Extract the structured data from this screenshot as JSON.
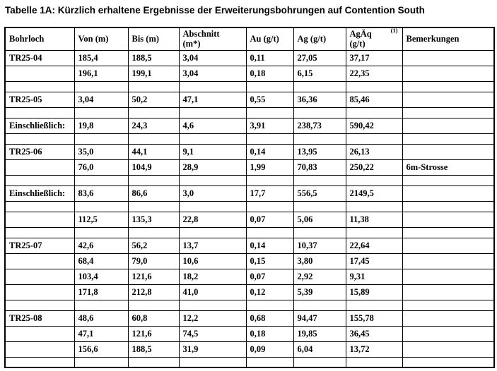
{
  "title": "Tabelle 1A: Kürzlich erhaltene Ergebnisse der Erweiterungsbohrungen auf Contention South",
  "table": {
    "columns": [
      {
        "lines": [
          "Bohrloch"
        ]
      },
      {
        "lines": [
          "Von (m)"
        ]
      },
      {
        "lines": [
          "Bis (m)"
        ]
      },
      {
        "lines": [
          "Abschnitt",
          "(m*)"
        ]
      },
      {
        "lines": [
          "Au (g/t)"
        ]
      },
      {
        "lines": [
          "Ag (g/t)"
        ]
      },
      {
        "lines": [
          "AgÄq",
          "(g/t)"
        ],
        "superscript": "(1)"
      },
      {
        "lines": [
          "Bemerkungen"
        ]
      }
    ],
    "rows": [
      {
        "type": "data",
        "cells": [
          "TR25-04",
          "185,4",
          "188,5",
          "3,04",
          "0,11",
          "27,05",
          "37,17",
          ""
        ]
      },
      {
        "type": "data",
        "cells": [
          "",
          "196,1",
          "199,1",
          "3,04",
          "0,18",
          "6,15",
          "22,35",
          ""
        ]
      },
      {
        "type": "spacer",
        "cells": [
          "",
          "",
          "",
          "",
          "",
          "",
          "",
          ""
        ]
      },
      {
        "type": "data",
        "cells": [
          "TR25-05",
          "3,04",
          "50,2",
          "47,1",
          "0,55",
          "36,36",
          "85,46",
          ""
        ]
      },
      {
        "type": "spacer",
        "cells": [
          "",
          "",
          "",
          "",
          "",
          "",
          "",
          ""
        ]
      },
      {
        "type": "data",
        "cells": [
          "Einschließlich:",
          "19,8",
          "24,3",
          "4,6",
          "3,91",
          "238,73",
          "590,42",
          ""
        ]
      },
      {
        "type": "spacer",
        "cells": [
          "",
          "",
          "",
          "",
          "",
          "",
          "",
          ""
        ]
      },
      {
        "type": "data",
        "cells": [
          "TR25-06",
          "35,0",
          "44,1",
          "9,1",
          "0,14",
          "13,95",
          "26,13",
          ""
        ]
      },
      {
        "type": "data",
        "cells": [
          "",
          "76,0",
          "104,9",
          "28,9",
          "1,99",
          "70,83",
          "250,22",
          "6m-Strosse"
        ]
      },
      {
        "type": "spacer",
        "cells": [
          "",
          "",
          "",
          "",
          "",
          "",
          "",
          ""
        ]
      },
      {
        "type": "data",
        "cells": [
          "Einschließlich:",
          "83,6",
          "86,6",
          "3,0",
          "17,7",
          "556,5",
          "2149,5",
          ""
        ]
      },
      {
        "type": "spacer",
        "cells": [
          "",
          "",
          "",
          "",
          "",
          "",
          "",
          ""
        ]
      },
      {
        "type": "data",
        "cells": [
          "",
          "112,5",
          "135,3",
          "22,8",
          "0,07",
          "5,06",
          "11,38",
          ""
        ]
      },
      {
        "type": "spacer",
        "cells": [
          "",
          "",
          "",
          "",
          "",
          "",
          "",
          ""
        ]
      },
      {
        "type": "data",
        "cells": [
          "TR25-07",
          "42,6",
          "56,2",
          "13,7",
          "0,14",
          "10,37",
          "22,64",
          ""
        ]
      },
      {
        "type": "data",
        "cells": [
          "",
          "68,4",
          "79,0",
          "10,6",
          "0,15",
          "3,80",
          "17,45",
          ""
        ]
      },
      {
        "type": "data",
        "cells": [
          "",
          "103,4",
          "121,6",
          "18,2",
          "0,07",
          "2,92",
          "9,31",
          ""
        ]
      },
      {
        "type": "data",
        "cells": [
          "",
          "171,8",
          "212,8",
          "41,0",
          "0,12",
          "5,39",
          "15,89",
          ""
        ]
      },
      {
        "type": "spacer",
        "cells": [
          "",
          "",
          "",
          "",
          "",
          "",
          "",
          ""
        ]
      },
      {
        "type": "data",
        "cells": [
          "TR25-08",
          "48,6",
          "60,8",
          "12,2",
          "0,68",
          "94,47",
          "155,78",
          ""
        ]
      },
      {
        "type": "data",
        "cells": [
          "",
          "47,1",
          "121,6",
          "74,5",
          "0,18",
          "19,85",
          "36,45",
          ""
        ]
      },
      {
        "type": "data",
        "cells": [
          "",
          "156,6",
          "188,5",
          "31,9",
          "0,09",
          "6,04",
          "13,72",
          ""
        ]
      },
      {
        "type": "spacer",
        "cells": [
          "",
          "",
          "",
          "",
          "",
          "",
          "",
          ""
        ]
      }
    ]
  }
}
